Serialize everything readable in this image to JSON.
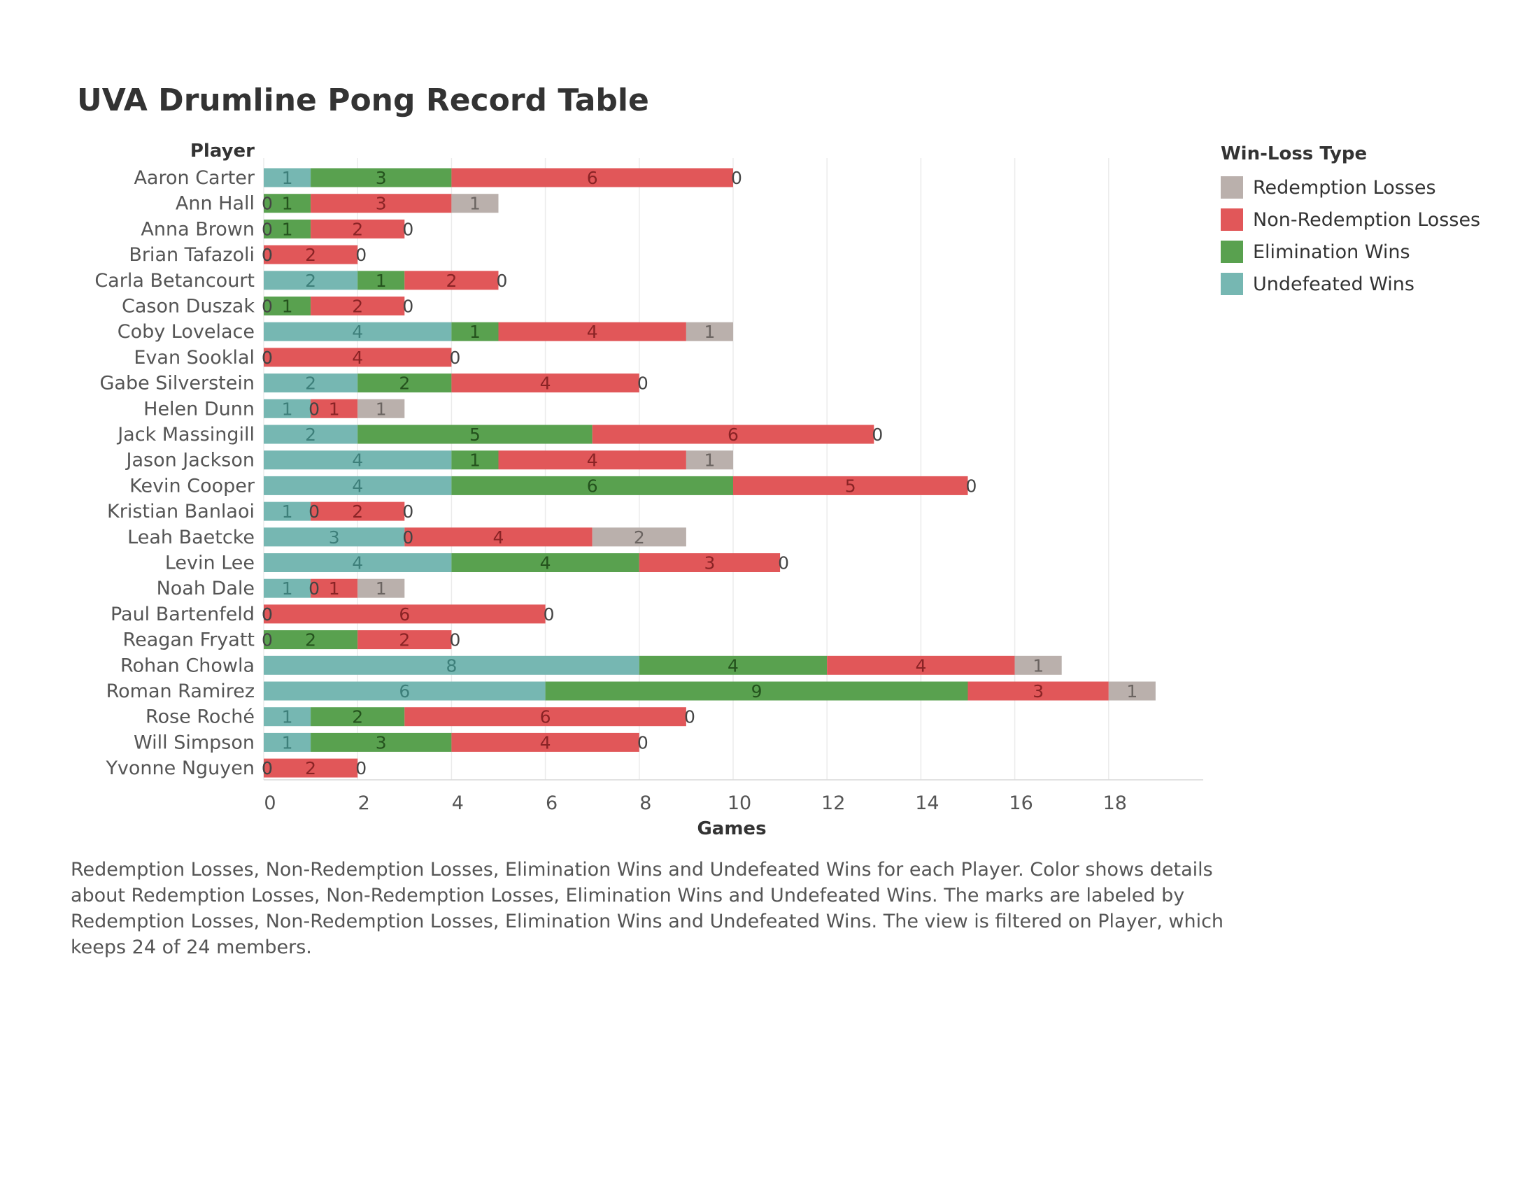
{
  "chart_data": {
    "type": "bar",
    "orientation": "horizontal",
    "stacked": true,
    "title": "UVA Drumline Pong Record Table",
    "xlabel": "Games",
    "ylabel": "Player",
    "xlim": [
      0,
      20
    ],
    "xticks": [
      0,
      2,
      4,
      6,
      8,
      10,
      12,
      14,
      16,
      18
    ],
    "grid": "vertical",
    "legend_title": "Win-Loss Type",
    "legend_position": "top-right",
    "categories": [
      "Aaron Carter",
      "Ann Hall",
      "Anna Brown",
      "Brian Tafazoli",
      "Carla Betancourt",
      "Cason Duszak",
      "Coby Lovelace",
      "Evan Sooklal",
      "Gabe Silverstein",
      "Helen Dunn",
      "Jack Massingill",
      "Jason Jackson",
      "Kevin Cooper",
      "Kristian Banlaoi",
      "Leah Baetcke",
      "Levin Lee",
      "Noah Dale",
      "Paul Bartenfeld",
      "Reagan Fryatt",
      "Rohan Chowla",
      "Roman Ramirez",
      "Rose Roché",
      "Will Simpson",
      "Yvonne Nguyen"
    ],
    "series": [
      {
        "name": "Undefeated Wins",
        "color": "#76b7b2",
        "label_color": "#3d7f7a",
        "values": [
          1,
          0,
          0,
          0,
          2,
          0,
          4,
          0,
          2,
          1,
          2,
          4,
          4,
          1,
          3,
          4,
          1,
          0,
          0,
          8,
          6,
          1,
          1,
          0
        ]
      },
      {
        "name": "Elimination Wins",
        "color": "#59a14f",
        "label_color": "#24521d",
        "values": [
          3,
          1,
          1,
          0,
          1,
          1,
          1,
          0,
          2,
          0,
          5,
          1,
          6,
          0,
          0,
          4,
          0,
          0,
          2,
          4,
          9,
          2,
          3,
          0
        ]
      },
      {
        "name": "Non-Redemption Losses",
        "color": "#e15759",
        "label_color": "#8a2325",
        "values": [
          6,
          3,
          2,
          2,
          2,
          2,
          4,
          4,
          4,
          1,
          6,
          4,
          5,
          2,
          4,
          3,
          1,
          6,
          2,
          4,
          3,
          6,
          4,
          2
        ]
      },
      {
        "name": "Redemption Losses",
        "color": "#bab0ac",
        "label_color": "#6b6461",
        "values": [
          0,
          1,
          0,
          0,
          0,
          0,
          1,
          0,
          0,
          1,
          0,
          1,
          0,
          0,
          2,
          0,
          1,
          0,
          0,
          1,
          1,
          0,
          0,
          0
        ]
      }
    ],
    "legend_order": [
      "Redemption Losses",
      "Non-Redemption Losses",
      "Elimination Wins",
      "Undefeated Wins"
    ]
  },
  "caption": "Redemption Losses, Non-Redemption Losses, Elimination Wins and Undefeated Wins for each Player.  Color shows details about Redemption Losses, Non-Redemption Losses, Elimination Wins and Undefeated Wins.  The marks are labeled by Redemption Losses, Non-Redemption Losses, Elimination Wins and Undefeated Wins. The view is filtered on Player, which keeps 24 of 24 members."
}
